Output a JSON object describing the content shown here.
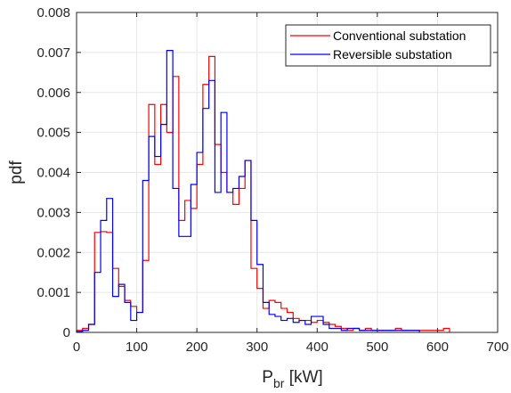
{
  "chart_data": {
    "type": "line",
    "title": "",
    "xlabel_main": "P",
    "xlabel_sub": "br",
    "xlabel_unit": " [kW]",
    "ylabel": "pdf",
    "xlim": [
      0,
      700
    ],
    "ylim": [
      0,
      0.008
    ],
    "xticks": [
      0,
      100,
      200,
      300,
      400,
      500,
      600,
      700
    ],
    "yticks": [
      0,
      0.001,
      0.002,
      0.003,
      0.004,
      0.005,
      0.006,
      0.007,
      0.008
    ],
    "xtick_labels": [
      "0",
      "100",
      "200",
      "300",
      "400",
      "500",
      "600",
      "700"
    ],
    "ytick_labels": [
      "0",
      "0.001",
      "0.002",
      "0.003",
      "0.004",
      "0.005",
      "0.006",
      "0.007",
      "0.008"
    ],
    "grid": true,
    "legend_position": "top-right",
    "bin_width": 10,
    "series": [
      {
        "name": "Conventional substation",
        "color": "#ff0000",
        "bin_starts": [
          0,
          10,
          20,
          30,
          40,
          50,
          60,
          70,
          80,
          90,
          100,
          110,
          120,
          130,
          140,
          150,
          160,
          170,
          180,
          190,
          200,
          210,
          220,
          230,
          240,
          250,
          260,
          270,
          280,
          290,
          300,
          310,
          320,
          330,
          340,
          350,
          360,
          370,
          380,
          390,
          400,
          410,
          420,
          430,
          440,
          450,
          460,
          470,
          480,
          490,
          500,
          510,
          520,
          530,
          540,
          550,
          560,
          570,
          580,
          590,
          600,
          610
        ],
        "values": [
          5e-05,
          0.0001,
          0.0002,
          0.0025,
          0.00252,
          0.0025,
          0.0016,
          0.00115,
          0.0008,
          0.00065,
          0.0005,
          0.0018,
          0.0057,
          0.0042,
          0.0057,
          0.005,
          0.0064,
          0.0028,
          0.0033,
          0.0031,
          0.0042,
          0.0062,
          0.0069,
          0.0047,
          0.004,
          0.0035,
          0.0032,
          0.0036,
          0.0043,
          0.0016,
          0.0011,
          0.0006,
          0.0008,
          0.00075,
          0.0006,
          0.0005,
          0.00035,
          0.0003,
          0.0003,
          0.00025,
          0.0003,
          0.00025,
          0.0002,
          0.00015,
          0.0001,
          5e-05,
          0.0001,
          5e-05,
          0.0001,
          5e-05,
          5e-05,
          5e-05,
          5e-05,
          0.0001,
          5e-05,
          5e-05,
          5e-05,
          5e-05,
          5e-05,
          5e-05,
          5e-05,
          0.0001
        ]
      },
      {
        "name": "Reversible substation",
        "color": "#0000ff",
        "bin_starts": [
          0,
          10,
          20,
          30,
          40,
          50,
          60,
          70,
          80,
          90,
          100,
          110,
          120,
          130,
          140,
          150,
          160,
          170,
          180,
          190,
          200,
          210,
          220,
          230,
          240,
          250,
          260,
          270,
          280,
          290,
          300,
          310,
          320,
          330,
          340,
          350,
          360,
          370,
          380,
          390,
          400,
          410,
          420,
          430,
          440,
          450,
          460,
          470,
          480,
          490,
          500,
          510,
          520,
          530,
          540,
          550,
          560
        ],
        "values": [
          2e-05,
          5e-05,
          0.0002,
          0.0015,
          0.0028,
          0.00335,
          0.0009,
          0.0012,
          0.00075,
          0.0003,
          0.0005,
          0.0038,
          0.0049,
          0.0044,
          0.0052,
          0.00705,
          0.0036,
          0.0024,
          0.0024,
          0.0037,
          0.0045,
          0.0056,
          0.0063,
          0.0035,
          0.0055,
          0.0035,
          0.0036,
          0.0039,
          0.0043,
          0.0028,
          0.0017,
          0.00075,
          0.00045,
          0.0004,
          0.0003,
          0.00035,
          0.00025,
          0.0003,
          0.0002,
          0.0004,
          0.0004,
          0.0002,
          0.0001,
          0.0001,
          5e-05,
          0.0001,
          0.0001,
          5e-05,
          5e-05,
          5e-05,
          5e-05,
          5e-05,
          5e-05,
          5e-05,
          5e-05,
          5e-05,
          5e-05
        ]
      }
    ]
  }
}
